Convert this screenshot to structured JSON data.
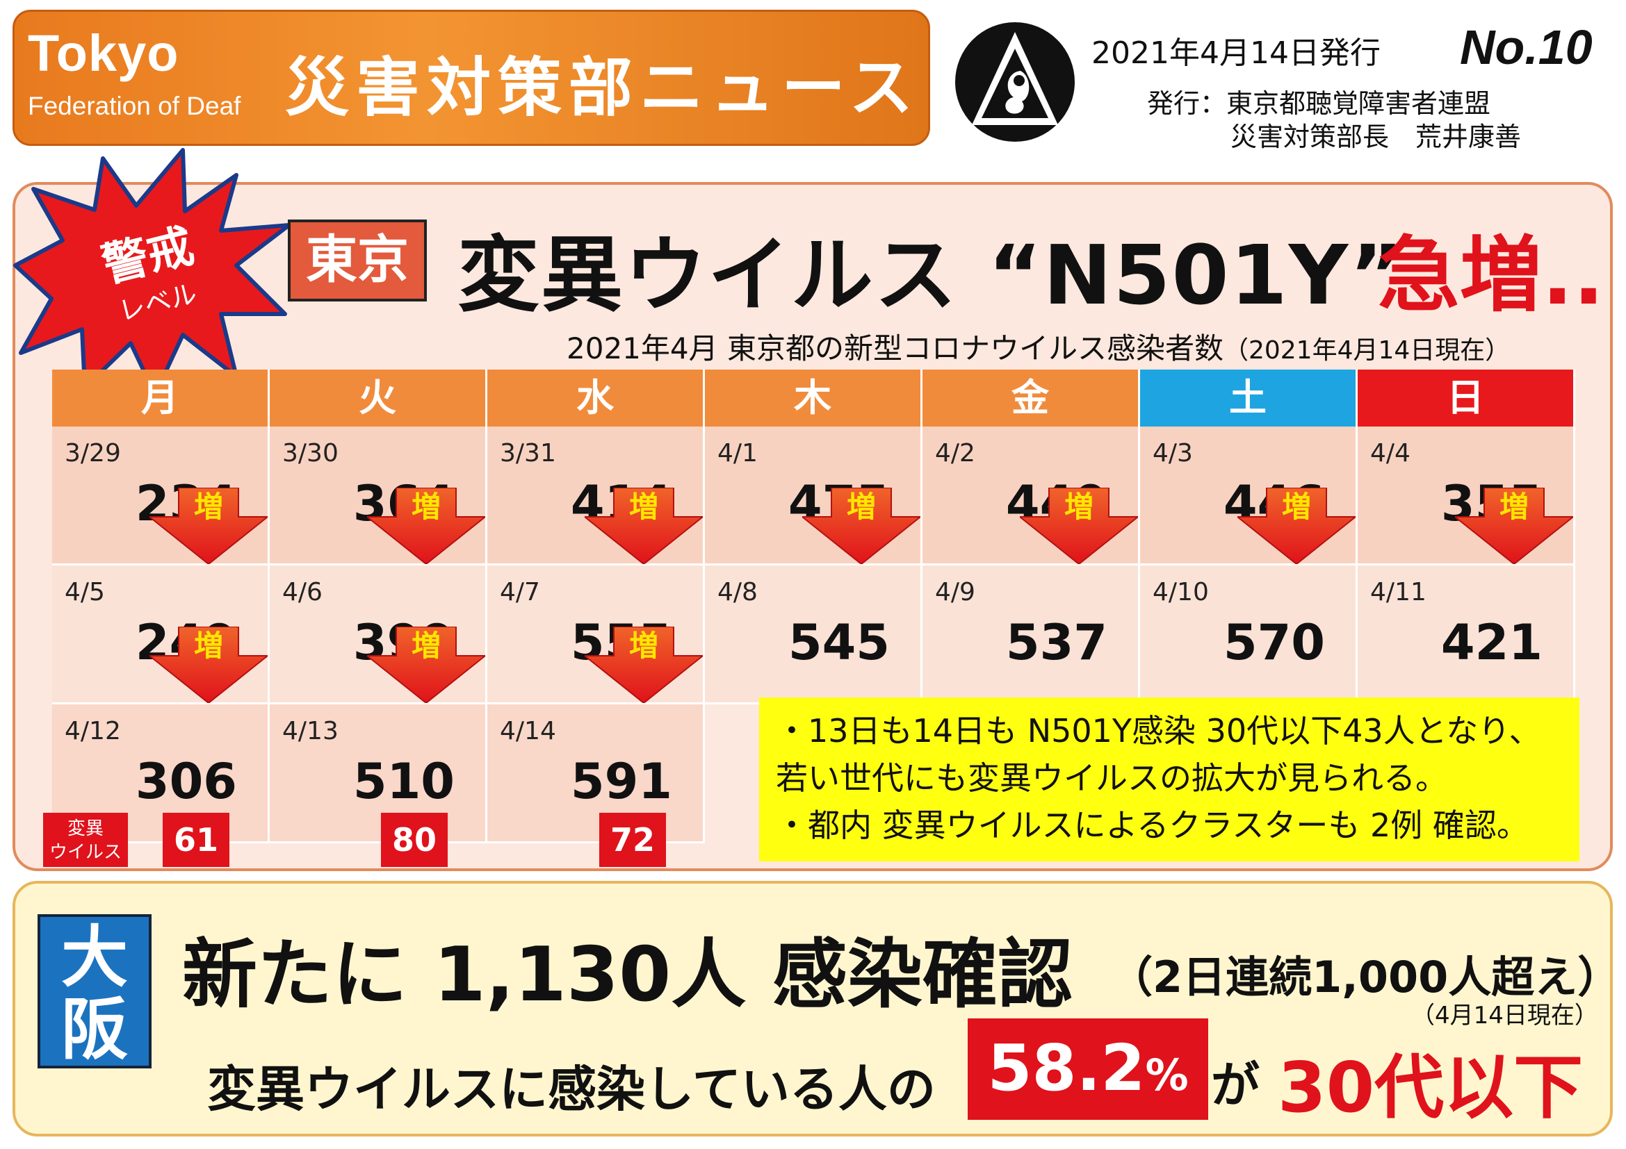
{
  "header": {
    "org_name": "Tokyo",
    "org_sub": "Federation of Deaf",
    "news_title": "災害対策部ニュース",
    "issue_date": "2021年4月14日発行",
    "issue_no": "No.10",
    "publisher_line1": "発行：東京都聴覚障害者連盟",
    "publisher_line2": "災害対策部長　荒井康善",
    "logo": "federation-logo-icon"
  },
  "alert": {
    "line1": "警戒",
    "line2": "レベル"
  },
  "tokyo": {
    "badge": "東京",
    "headline": "変異ウイルス “N501Y”",
    "headline_red": "急増..",
    "caption_main": "2021年4月  東京都の新型コロナウイルス感染者数",
    "caption_note": "（2021年4月14日現在）",
    "days": [
      {
        "label": "月",
        "color": "#f08b3c"
      },
      {
        "label": "火",
        "color": "#f08b3c"
      },
      {
        "label": "水",
        "color": "#f08b3c"
      },
      {
        "label": "木",
        "color": "#f08b3c"
      },
      {
        "label": "金",
        "color": "#f08b3c"
      },
      {
        "label": "土",
        "color": "#1ea4e0"
      },
      {
        "label": "日",
        "color": "#e8191c"
      }
    ],
    "weeks": [
      [
        {
          "date": "3/29",
          "value": "234"
        },
        {
          "date": "3/30",
          "value": "364"
        },
        {
          "date": "3/31",
          "value": "414"
        },
        {
          "date": "4/1",
          "value": "475"
        },
        {
          "date": "4/2",
          "value": "440"
        },
        {
          "date": "4/3",
          "value": "446"
        },
        {
          "date": "4/4",
          "value": "355"
        }
      ],
      [
        {
          "date": "4/5",
          "value": "249"
        },
        {
          "date": "4/6",
          "value": "399"
        },
        {
          "date": "4/7",
          "value": "555"
        },
        {
          "date": "4/8",
          "value": "545"
        },
        {
          "date": "4/9",
          "value": "537"
        },
        {
          "date": "4/10",
          "value": "570"
        },
        {
          "date": "4/11",
          "value": "421"
        }
      ],
      [
        {
          "date": "4/12",
          "value": "306"
        },
        {
          "date": "4/13",
          "value": "510"
        },
        {
          "date": "4/14",
          "value": "591"
        }
      ]
    ],
    "increase_label": "増",
    "variant_label_line1": "変異",
    "variant_label_line2": "ウイルス",
    "variant_counts": [
      "61",
      "80",
      "72"
    ],
    "note_lines": [
      "・13日も14日も  N501Y感染 30代以下43人となり、",
      "   若い世代にも変異ウイルスの拡大が見られる。",
      "・都内 変異ウイルスによるクラスターも 2例 確認。"
    ]
  },
  "osaka": {
    "badge_line1": "大",
    "badge_line2": "阪",
    "headline": "新たに 1,130人 感染確認",
    "paren": "（2日連続1,000人超え）",
    "as_of": "（4月14日現在）",
    "line_prefix": "変異ウイルスに感染している人の",
    "percent": "58.2",
    "percent_sign": "%",
    "particle": "が",
    "age": "30代以下"
  },
  "colors": {
    "accent_orange": "#f08b3c",
    "saturday": "#1ea4e0",
    "sunday": "#e8191c",
    "red": "#e0121b",
    "note_yellow": "#ffff10",
    "osaka_blue": "#1b73c0"
  }
}
